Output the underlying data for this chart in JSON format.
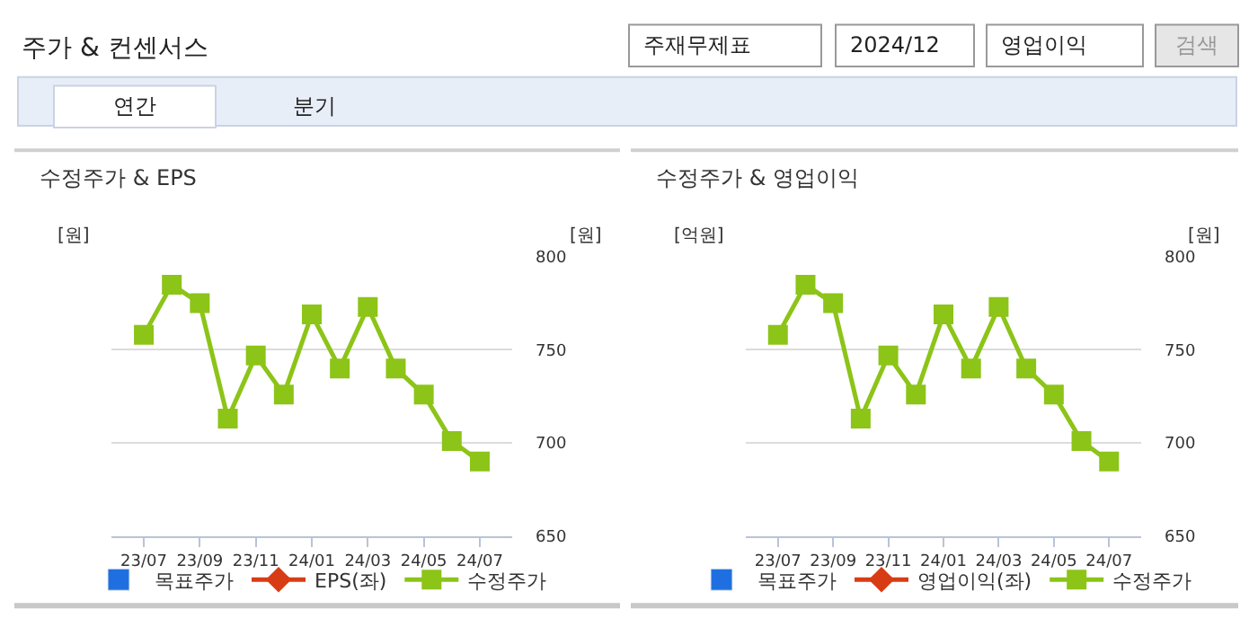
{
  "chart_data": [
    {
      "type": "other",
      "title": "주가 & 컨센서스",
      "annotations": [
        "주재무제표",
        "2024/12",
        "영업이익",
        "검색",
        "연간",
        "분기"
      ]
    },
    {
      "type": "line",
      "title": "수정주가 & EPS",
      "categories": [
        "23/07",
        null,
        "23/09",
        null,
        "23/11",
        null,
        "24/01",
        null,
        "24/03",
        null,
        "24/05",
        null,
        "24/07"
      ],
      "ylabel": "[원]",
      "y2label": "[원]",
      "y2lim": [
        650,
        800
      ],
      "y2ticks": [
        650,
        700,
        750,
        800
      ],
      "grid": "y",
      "legend": "bottom",
      "marker": "square",
      "line_style": "solid",
      "series": [
        {
          "name": "목표주가",
          "type": "bar",
          "color": "#1f6fe0",
          "values": [
            null,
            null,
            null,
            null,
            null,
            null,
            null,
            null,
            null,
            null,
            null,
            null,
            null
          ]
        },
        {
          "name": "EPS(좌)",
          "color": "#d83c14",
          "marker": "diamond",
          "values": [
            null,
            null,
            null,
            null,
            null,
            null,
            null,
            null,
            null,
            null,
            null,
            null,
            null
          ]
        },
        {
          "name": "수정주가",
          "color": "#8cc418",
          "axis": "y2",
          "values": [
            758,
            785,
            775,
            713,
            747,
            726,
            769,
            740,
            773,
            740,
            726,
            701,
            690
          ]
        }
      ]
    },
    {
      "type": "line",
      "title": "수정주가 & 영업이익",
      "categories": [
        "23/07",
        null,
        "23/09",
        null,
        "23/11",
        null,
        "24/01",
        null,
        "24/03",
        null,
        "24/05",
        null,
        "24/07"
      ],
      "ylabel": "[억원]",
      "y2label": "[원]",
      "y2lim": [
        650,
        800
      ],
      "y2ticks": [
        650,
        700,
        750,
        800
      ],
      "grid": "y",
      "legend": "bottom",
      "marker": "square",
      "line_style": "solid",
      "series": [
        {
          "name": "목표주가",
          "type": "bar",
          "color": "#1f6fe0",
          "values": [
            null,
            null,
            null,
            null,
            null,
            null,
            null,
            null,
            null,
            null,
            null,
            null,
            null
          ]
        },
        {
          "name": "영업이익(좌)",
          "color": "#d83c14",
          "marker": "diamond",
          "values": [
            null,
            null,
            null,
            null,
            null,
            null,
            null,
            null,
            null,
            null,
            null,
            null,
            null
          ]
        },
        {
          "name": "수정주가",
          "color": "#8cc418",
          "axis": "y2",
          "values": [
            758,
            785,
            775,
            713,
            747,
            726,
            769,
            740,
            773,
            740,
            726,
            701,
            690
          ]
        }
      ]
    }
  ]
}
